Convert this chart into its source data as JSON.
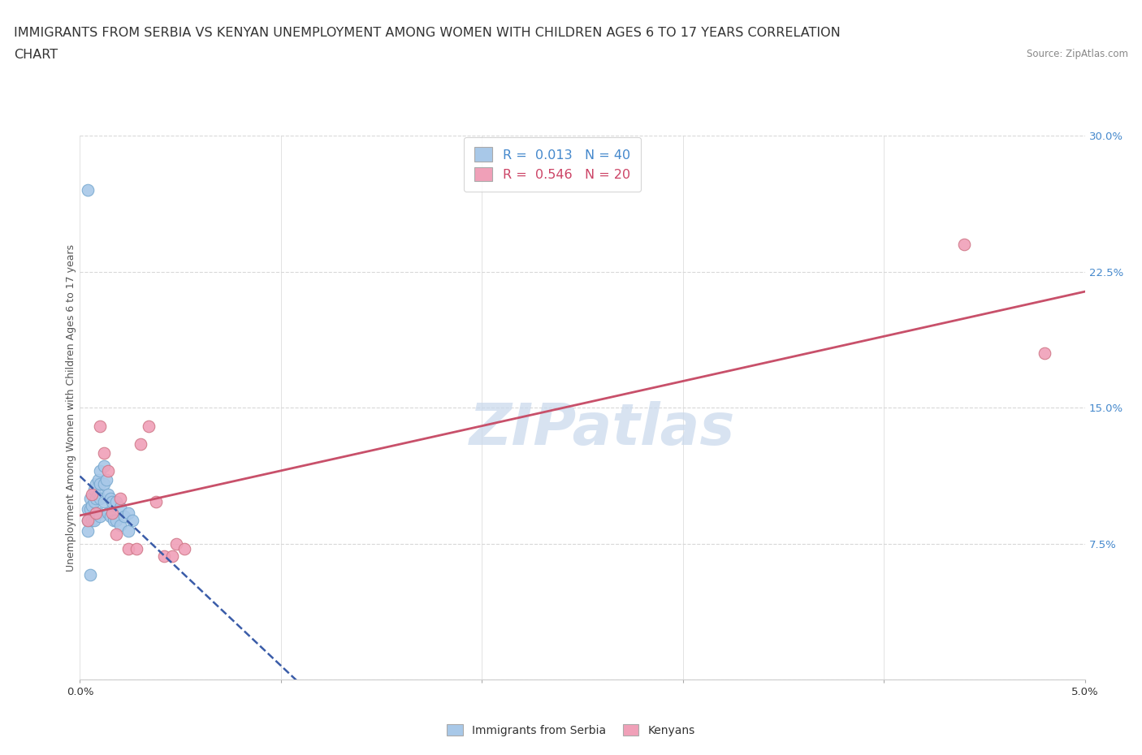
{
  "title_line1": "IMMIGRANTS FROM SERBIA VS KENYAN UNEMPLOYMENT AMONG WOMEN WITH CHILDREN AGES 6 TO 17 YEARS CORRELATION",
  "title_line2": "CHART",
  "source": "Source: ZipAtlas.com",
  "ylabel": "Unemployment Among Women with Children Ages 6 to 17 years",
  "xlim": [
    0.0,
    0.05
  ],
  "ylim": [
    0.0,
    0.3
  ],
  "serbia_R": "0.013",
  "serbia_N": "40",
  "kenya_R": "0.546",
  "kenya_N": "20",
  "serbia_color": "#a8c8e8",
  "kenya_color": "#f0a0b8",
  "serbia_line_color": "#3a5ca8",
  "kenya_line_color": "#c8506a",
  "serbia_dot_edge": "#7aaad0",
  "kenya_dot_edge": "#d07888",
  "serbia_x": [
    0.0004,
    0.0004,
    0.0004,
    0.0005,
    0.0005,
    0.0006,
    0.0006,
    0.0007,
    0.0007,
    0.0007,
    0.0008,
    0.0008,
    0.0008,
    0.0009,
    0.0009,
    0.0009,
    0.001,
    0.001,
    0.001,
    0.001,
    0.0012,
    0.0012,
    0.0012,
    0.0013,
    0.0014,
    0.0014,
    0.0015,
    0.0015,
    0.0016,
    0.0017,
    0.0018,
    0.0018,
    0.002,
    0.002,
    0.0022,
    0.0024,
    0.0024,
    0.0026,
    0.0004,
    0.0005
  ],
  "serbia_y": [
    0.094,
    0.088,
    0.082,
    0.1,
    0.094,
    0.096,
    0.088,
    0.105,
    0.098,
    0.088,
    0.108,
    0.1,
    0.092,
    0.11,
    0.102,
    0.092,
    0.115,
    0.108,
    0.1,
    0.09,
    0.118,
    0.108,
    0.098,
    0.11,
    0.102,
    0.092,
    0.1,
    0.09,
    0.098,
    0.088,
    0.098,
    0.088,
    0.095,
    0.085,
    0.09,
    0.092,
    0.082,
    0.088,
    0.27,
    0.058
  ],
  "kenya_x": [
    0.0004,
    0.0006,
    0.0008,
    0.001,
    0.0012,
    0.0014,
    0.0016,
    0.0018,
    0.002,
    0.0024,
    0.0028,
    0.003,
    0.0034,
    0.0038,
    0.0042,
    0.0046,
    0.0048,
    0.0052,
    0.044,
    0.048
  ],
  "kenya_y": [
    0.088,
    0.102,
    0.092,
    0.14,
    0.125,
    0.115,
    0.092,
    0.08,
    0.1,
    0.072,
    0.072,
    0.13,
    0.14,
    0.098,
    0.068,
    0.068,
    0.075,
    0.072,
    0.24,
    0.18
  ],
  "watermark_text": "ZIPatlas",
  "watermark_color": "#c8d8ec",
  "background_color": "#ffffff",
  "grid_color": "#d8d8d8",
  "title_fontsize": 11.5,
  "axis_fontsize": 9.5,
  "legend_fontsize": 11.5
}
